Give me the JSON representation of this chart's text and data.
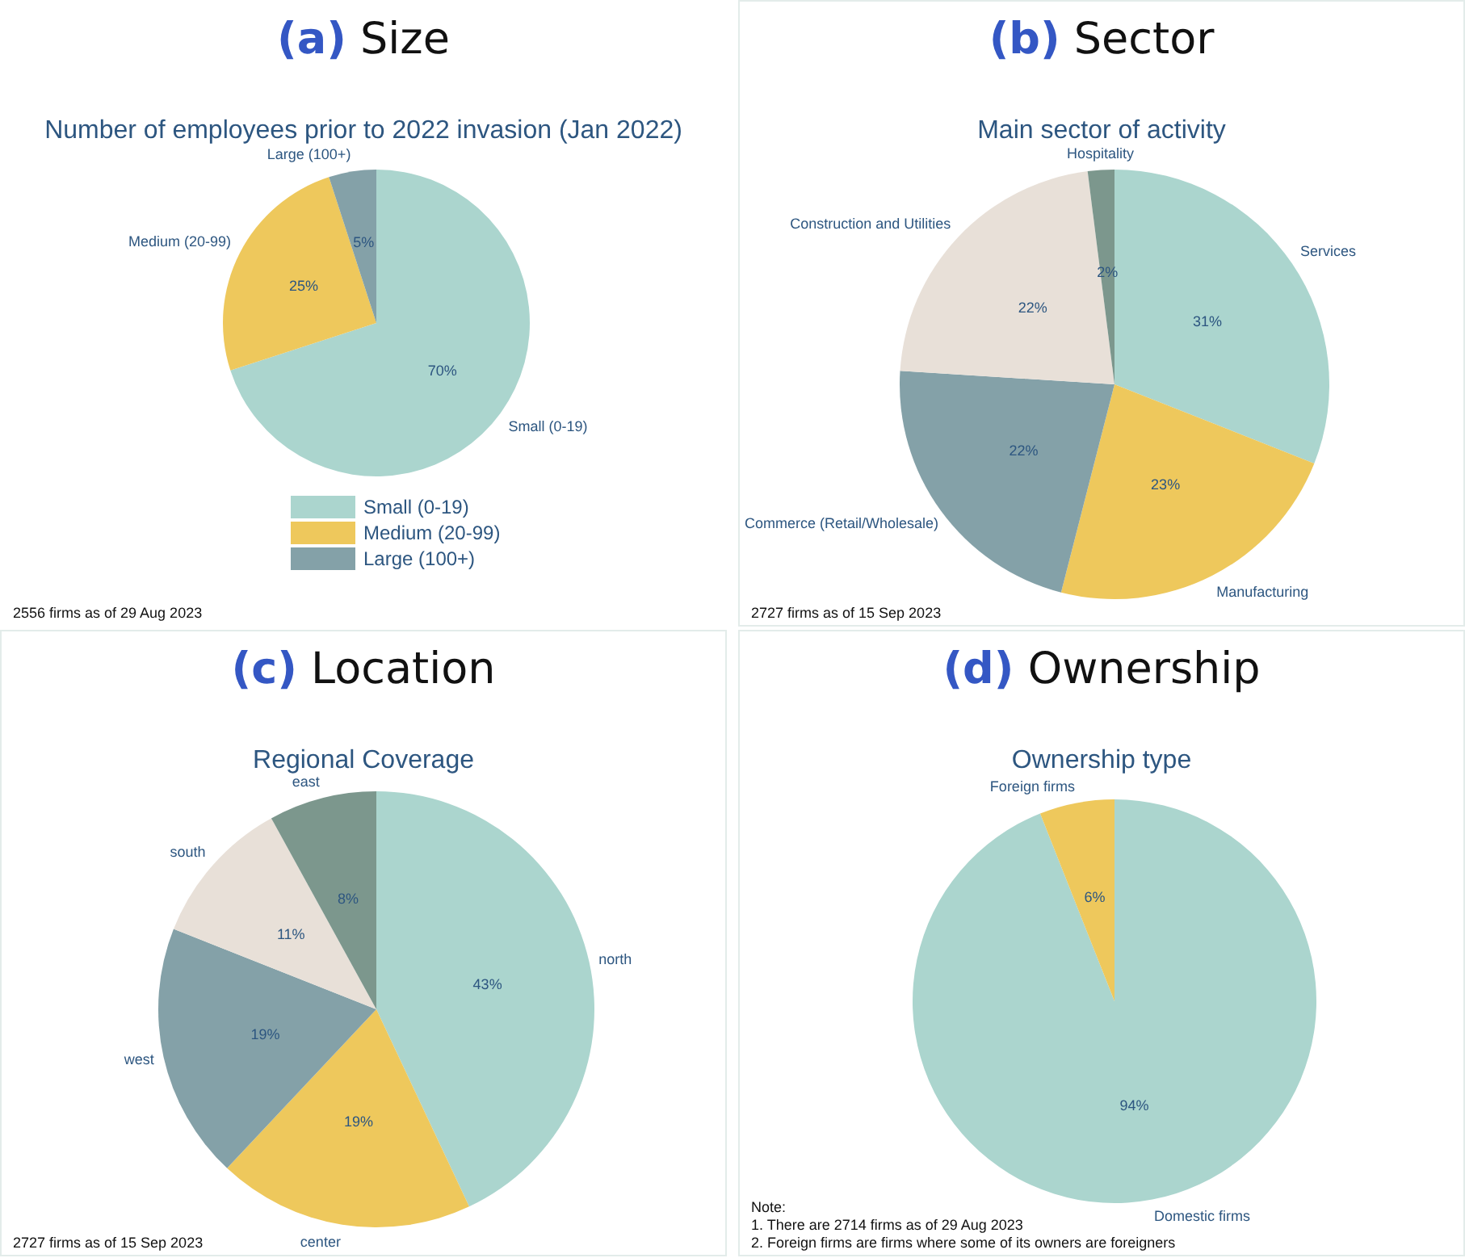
{
  "chart_data": [
    {
      "type": "pie",
      "title": "(a) Size",
      "subtitle": "Number of employees prior to 2022 invasion (Jan 2022)",
      "categories": [
        "Small (0-19)",
        "Medium (20-99)",
        "Large (100+)"
      ],
      "values": [
        70,
        25,
        5
      ],
      "value_labels": [
        "70%",
        "25%",
        "5%"
      ],
      "colors": [
        "#abd5ce",
        "#eec85c",
        "#84a1a8"
      ],
      "legend": "bottom",
      "annotations": [
        "2556 firms as of 29 Aug 2023"
      ]
    },
    {
      "type": "pie",
      "title": "(b) Sector",
      "subtitle": "Main sector of activity",
      "categories": [
        "Services",
        "Manufacturing",
        "Commerce (Retail/Wholesale)",
        "Construction and Utilities",
        "Hospitality"
      ],
      "values": [
        31,
        23,
        22,
        22,
        2
      ],
      "value_labels": [
        "31%",
        "23%",
        "22%",
        "22%",
        "2%"
      ],
      "colors": [
        "#abd5ce",
        "#eec85c",
        "#84a1a8",
        "#e8e0d8",
        "#7c978d"
      ],
      "legend": false,
      "annotations": [
        "2727 firms as of 15 Sep 2023"
      ]
    },
    {
      "type": "pie",
      "title": "(c) Location",
      "subtitle": "Regional Coverage",
      "categories": [
        "north",
        "center",
        "west",
        "south",
        "east"
      ],
      "values": [
        43,
        19,
        19,
        11,
        8
      ],
      "value_labels": [
        "43%",
        "19%",
        "19%",
        "11%",
        "8%"
      ],
      "colors": [
        "#abd5ce",
        "#eec85c",
        "#84a1a8",
        "#e8e0d8",
        "#7c978d"
      ],
      "legend": false,
      "annotations": [
        "2727 firms as of 15 Sep 2023"
      ]
    },
    {
      "type": "pie",
      "title": "(d) Ownership",
      "subtitle": "Ownership type",
      "categories": [
        "Domestic firms",
        "Foreign firms"
      ],
      "values": [
        94,
        6
      ],
      "value_labels": [
        "94%",
        "6%"
      ],
      "colors": [
        "#abd5ce",
        "#eec85c"
      ],
      "legend": false,
      "annotations": [
        "Note:",
        "1. There are 2714 firms as of 29 Aug 2023",
        "2. Foreign firms are firms where some of its owners are foreigners"
      ]
    }
  ]
}
